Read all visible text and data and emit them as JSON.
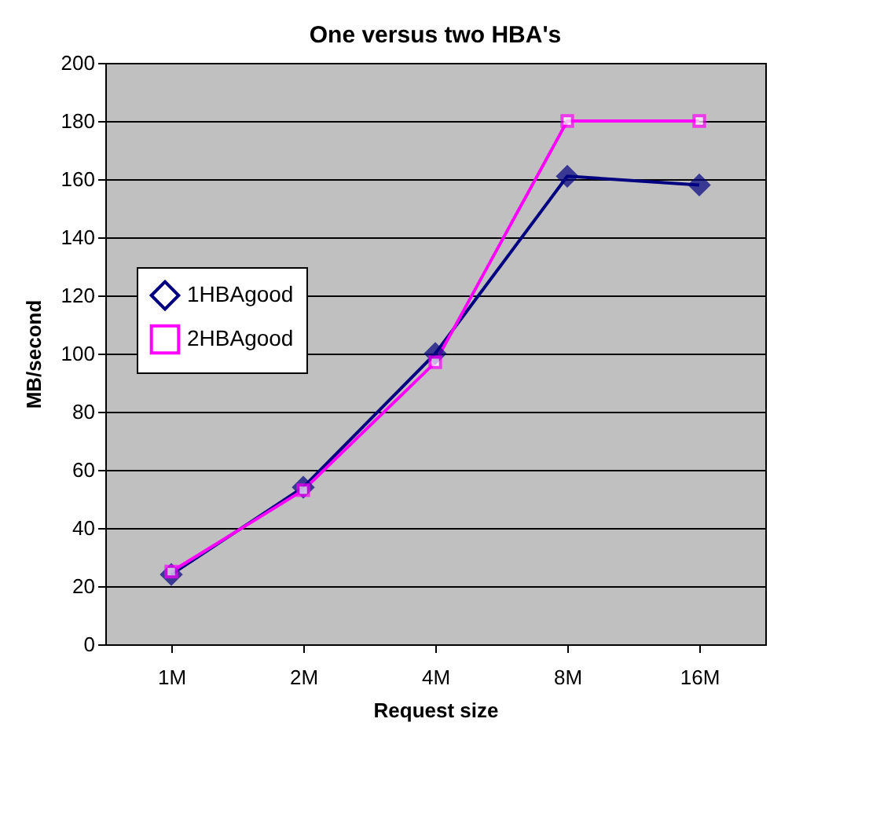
{
  "chart_data": {
    "type": "line",
    "title": "One versus two HBA's",
    "xlabel": "Request size",
    "ylabel": "MB/second",
    "categories": [
      "1M",
      "2M",
      "4M",
      "8M",
      "16M"
    ],
    "series": [
      {
        "name": "1HBAgood",
        "color": "#000080",
        "marker": "diamond",
        "values": [
          24,
          54,
          100,
          161,
          158
        ]
      },
      {
        "name": "2HBAgood",
        "color": "#ff00ff",
        "marker": "square",
        "values": [
          25,
          53,
          97,
          180,
          180
        ]
      }
    ],
    "ylim": [
      0,
      200
    ],
    "yticks": [
      0,
      20,
      40,
      60,
      80,
      100,
      120,
      140,
      160,
      180,
      200
    ],
    "grid": "y",
    "legend": "left",
    "line_style": "solid"
  }
}
